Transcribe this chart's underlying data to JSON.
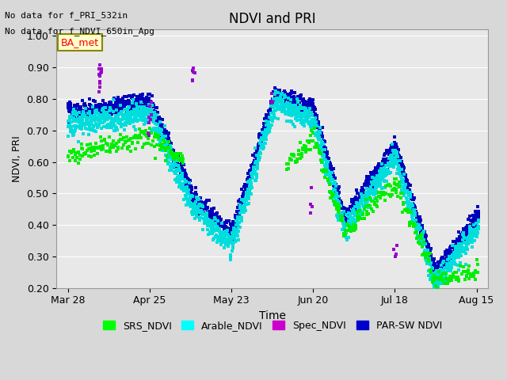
{
  "title": "NDVI and PRI",
  "xlabel": "Time",
  "ylabel": "NDVI, PRI",
  "annotation_line1": "No data for f_PRI_532in",
  "annotation_line2": "No data for f_NDVI_650in_Apg",
  "textbox_label": "BA_met",
  "ylim": [
    0.2,
    1.02
  ],
  "yticks": [
    0.2,
    0.3,
    0.4,
    0.5,
    0.6,
    0.7,
    0.8,
    0.9,
    1.0
  ],
  "xtick_labels": [
    "Mar 28",
    "Apr 25",
    "May 23",
    "Jun 20",
    "Jul 18",
    "Aug 15"
  ],
  "tick_days": [
    87,
    115,
    143,
    171,
    199,
    227
  ],
  "legend_entries": [
    "SRS_NDVI",
    "Arable_NDVI",
    "Spec_NDVI",
    "PAR-SW NDVI"
  ],
  "legend_colors": [
    "#00ff00",
    "#00ffff",
    "#cc00cc",
    "#0000cc"
  ],
  "bg_color": "#e8e8e8",
  "grid_color": "#ffffff",
  "srs_color": "#00ee00",
  "arable_color": "#00dddd",
  "spec_color": "#9900cc",
  "parsw_color": "#0000bb",
  "fig_bg": "#d8d8d8",
  "seed": 0
}
